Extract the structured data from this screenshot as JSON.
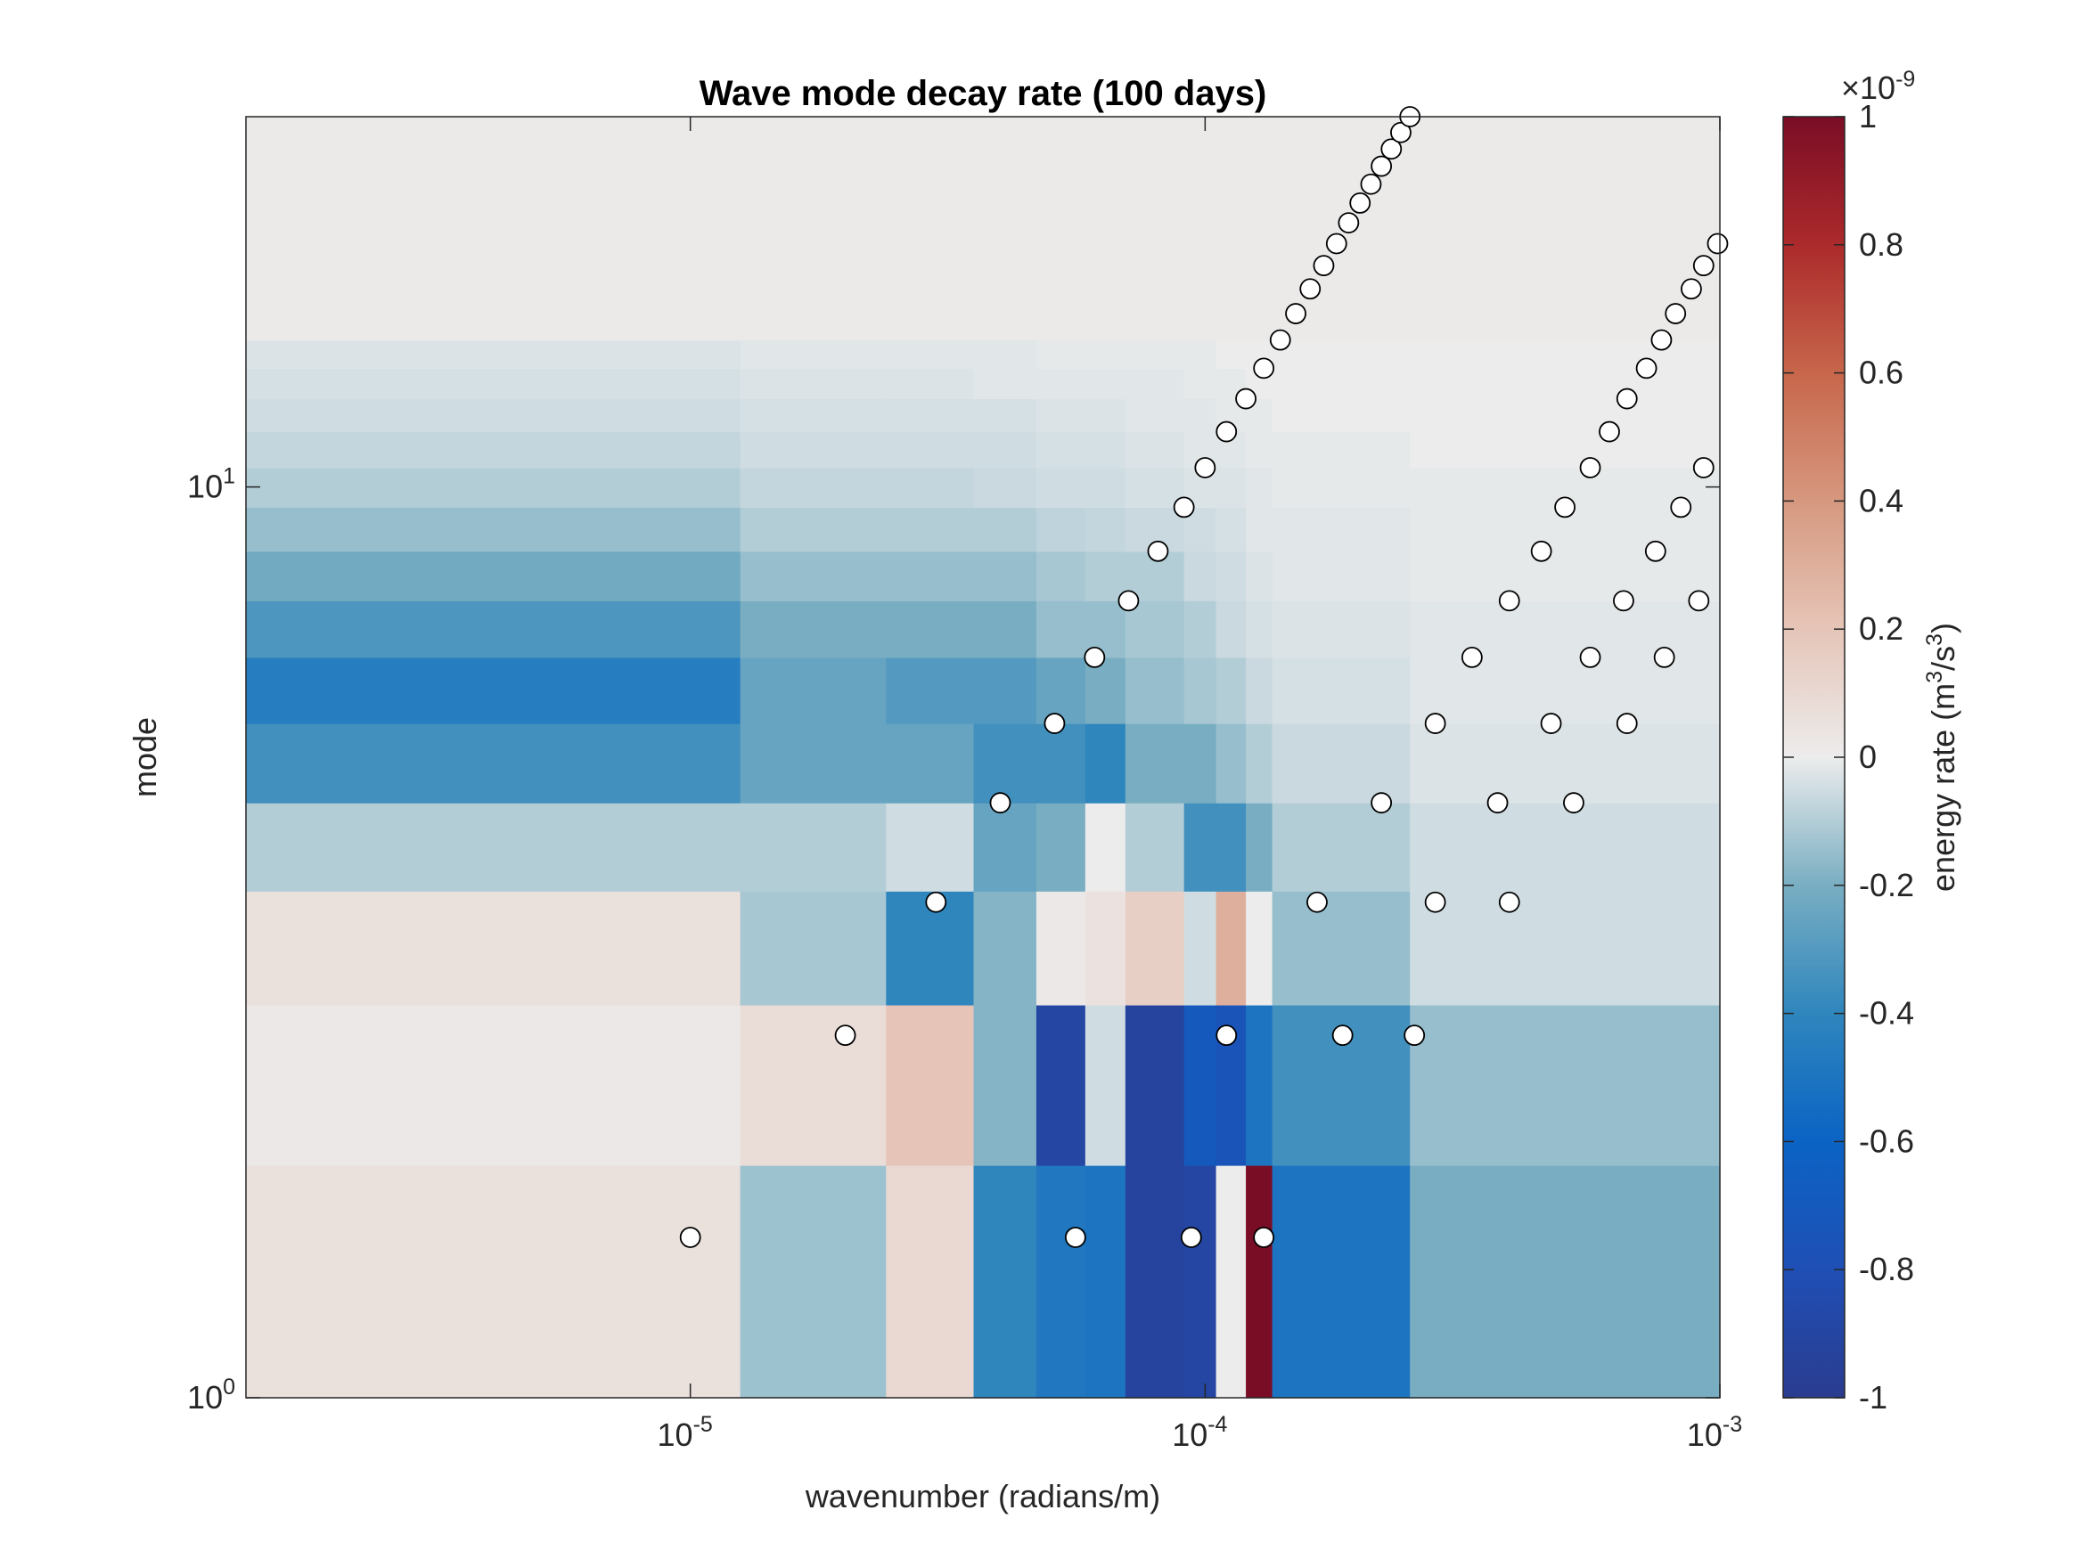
{
  "chart_data": {
    "type": "heatmap",
    "title": "Wave mode decay rate (100 days)",
    "xlabel": "wavenumber (radians/m)",
    "ylabel": "mode",
    "xscale": "log",
    "yscale": "log",
    "xlim": [
      1.37e-06,
      0.001
    ],
    "ylim": [
      1,
      25.5
    ],
    "x_ticks": [
      {
        "value": 1e-05,
        "base": "10",
        "exp": "-5"
      },
      {
        "value": 0.0001,
        "base": "10",
        "exp": "-4"
      },
      {
        "value": 0.001,
        "base": "10",
        "exp": "-3"
      }
    ],
    "y_ticks": [
      {
        "value": 1,
        "base": "10",
        "exp": "0"
      },
      {
        "value": 10,
        "base": "10",
        "exp": "1"
      }
    ],
    "colorbar": {
      "label": "energy rate (m³/s³)",
      "label_main": "energy rate (m",
      "label_sup1": "3",
      "label_mid": "/s",
      "label_sup2": "3",
      "label_end": ")",
      "multiplier_prefix": "×10",
      "multiplier_exp": "-9",
      "clim": [
        -1,
        1
      ],
      "ticks": [
        "1",
        "0.8",
        "0.6",
        "0.4",
        "0.2",
        "0",
        "-0.2",
        "-0.4",
        "-0.6",
        "-0.8",
        "-1"
      ],
      "colors": {
        "low": "#2a3c8f",
        "mid_low": "#0b63c4",
        "mid": "#ececec",
        "mid_high": "#d08a6e",
        "high": "#7a0d26"
      }
    },
    "mode_bands": [
      {
        "y0": 1,
        "y1": 1.8,
        "values": [
          0.06,
          -0.14,
          0.1,
          -0.4,
          -0.48,
          -0.5,
          -0.92,
          -0.9,
          0.0,
          1.0,
          -0.5,
          -0.2
        ]
      },
      {
        "y0": 1.8,
        "y1": 2.7,
        "values": [
          0.02,
          0.08,
          0.2,
          -0.18,
          -0.9,
          -0.05,
          -0.92,
          -0.7,
          -0.75,
          -0.5,
          -0.35,
          -0.15
        ]
      },
      {
        "y0": 2.7,
        "y1": 3.6,
        "values": [
          0.06,
          -0.12,
          -0.4,
          -0.18,
          0.02,
          0.05,
          0.15,
          -0.05,
          0.3,
          0.0,
          -0.15,
          -0.05
        ]
      },
      {
        "y0": 3.6,
        "y1": 4.5,
        "values": [
          -0.1,
          -0.1,
          -0.05,
          -0.25,
          -0.2,
          0.0,
          -0.1,
          -0.35,
          -0.35,
          -0.2,
          -0.1,
          -0.05
        ]
      },
      {
        "y0": 4.5,
        "y1": 5.5,
        "values": [
          -0.35,
          -0.25,
          -0.25,
          -0.35,
          -0.35,
          -0.4,
          -0.2,
          -0.2,
          -0.15,
          -0.1,
          -0.06,
          -0.03
        ]
      },
      {
        "y0": 5.5,
        "y1": 6.5,
        "values": [
          -0.45,
          -0.25,
          -0.3,
          -0.3,
          -0.25,
          -0.2,
          -0.15,
          -0.12,
          -0.1,
          -0.06,
          -0.04,
          -0.02
        ]
      },
      {
        "y0": 6.5,
        "y1": 7.5,
        "values": [
          -0.32,
          -0.2,
          -0.2,
          -0.2,
          -0.15,
          -0.15,
          -0.12,
          -0.1,
          -0.06,
          -0.04,
          -0.03,
          -0.02
        ]
      },
      {
        "y0": 7.5,
        "y1": 8.5,
        "values": [
          -0.22,
          -0.15,
          -0.15,
          -0.15,
          -0.12,
          -0.1,
          -0.1,
          -0.06,
          -0.05,
          -0.03,
          -0.02,
          -0.01
        ]
      },
      {
        "y0": 8.5,
        "y1": 9.5,
        "values": [
          -0.15,
          -0.1,
          -0.1,
          -0.1,
          -0.08,
          -0.07,
          -0.06,
          -0.05,
          -0.04,
          -0.02,
          -0.02,
          -0.01
        ]
      },
      {
        "y0": 9.5,
        "y1": 10.5,
        "values": [
          -0.1,
          -0.07,
          -0.07,
          -0.06,
          -0.05,
          -0.05,
          -0.04,
          -0.03,
          -0.03,
          -0.02,
          -0.01,
          -0.01
        ]
      },
      {
        "y0": 10.5,
        "y1": 11.5,
        "values": [
          -0.07,
          -0.05,
          -0.05,
          -0.05,
          -0.04,
          -0.04,
          -0.03,
          -0.02,
          -0.02,
          -0.01,
          -0.01,
          0.0
        ]
      },
      {
        "y0": 11.5,
        "y1": 12.5,
        "values": [
          -0.05,
          -0.04,
          -0.04,
          -0.04,
          -0.03,
          -0.03,
          -0.02,
          -0.02,
          -0.01,
          -0.01,
          0.0,
          0.0
        ]
      },
      {
        "y0": 12.5,
        "y1": 13.5,
        "values": [
          -0.04,
          -0.03,
          -0.03,
          -0.02,
          -0.02,
          -0.02,
          -0.02,
          -0.01,
          -0.01,
          0.0,
          0.0,
          0.0
        ]
      },
      {
        "y0": 13.5,
        "y1": 14.5,
        "values": [
          -0.03,
          -0.02,
          -0.02,
          -0.02,
          -0.01,
          -0.01,
          -0.01,
          -0.01,
          0.0,
          0.0,
          0.0,
          0.0
        ]
      },
      {
        "y0": 14.5,
        "y1": 25.5,
        "values": [
          0.01,
          0.01,
          0.01,
          0.01,
          0.01,
          0.01,
          0.01,
          0.01,
          0.01,
          0.01,
          0.01,
          0.01
        ]
      }
    ],
    "column_edges": [
      1.37e-06,
      1.25e-05,
      2.4e-05,
      3.55e-05,
      4.7e-05,
      5.85e-05,
      7e-05,
      9.1e-05,
      0.000105,
      0.00012,
      0.000135,
      0.00025,
      0.001
    ],
    "markers": [
      {
        "x": 1e-05,
        "y": 1.5
      },
      {
        "x": 5.6e-05,
        "y": 1.5
      },
      {
        "x": 9.4e-05,
        "y": 1.5
      },
      {
        "x": 0.00013,
        "y": 1.5
      },
      {
        "x": 2e-05,
        "y": 2.5
      },
      {
        "x": 0.00011,
        "y": 2.5
      },
      {
        "x": 0.000185,
        "y": 2.5
      },
      {
        "x": 0.000255,
        "y": 2.5
      },
      {
        "x": 3e-05,
        "y": 3.5
      },
      {
        "x": 0.000165,
        "y": 3.5
      },
      {
        "x": 0.00028,
        "y": 3.5
      },
      {
        "x": 0.00039,
        "y": 3.5
      },
      {
        "x": 4e-05,
        "y": 4.5
      },
      {
        "x": 0.00022,
        "y": 4.5
      },
      {
        "x": 0.00037,
        "y": 4.5
      },
      {
        "x": 0.00052,
        "y": 4.5
      },
      {
        "x": 5.1e-05,
        "y": 5.5
      },
      {
        "x": 0.00028,
        "y": 5.5
      },
      {
        "x": 0.00047,
        "y": 5.5
      },
      {
        "x": 0.00066,
        "y": 5.5
      },
      {
        "x": 6.1e-05,
        "y": 6.5
      },
      {
        "x": 0.00033,
        "y": 6.5
      },
      {
        "x": 0.00056,
        "y": 6.5
      },
      {
        "x": 0.00078,
        "y": 6.5
      },
      {
        "x": 7.1e-05,
        "y": 7.5
      },
      {
        "x": 0.00039,
        "y": 7.5
      },
      {
        "x": 0.00065,
        "y": 7.5
      },
      {
        "x": 0.00091,
        "y": 7.5
      },
      {
        "x": 8.1e-05,
        "y": 8.5
      },
      {
        "x": 0.00045,
        "y": 8.5
      },
      {
        "x": 0.00075,
        "y": 8.5
      },
      {
        "x": 9.1e-05,
        "y": 9.5
      },
      {
        "x": 0.0005,
        "y": 9.5
      },
      {
        "x": 0.00084,
        "y": 9.5
      },
      {
        "x": 0.0001,
        "y": 10.5
      },
      {
        "x": 0.00056,
        "y": 10.5
      },
      {
        "x": 0.00093,
        "y": 10.5
      },
      {
        "x": 0.00011,
        "y": 11.5
      },
      {
        "x": 0.00061,
        "y": 11.5
      },
      {
        "x": 0.00012,
        "y": 12.5
      },
      {
        "x": 0.00066,
        "y": 12.5
      },
      {
        "x": 0.00013,
        "y": 13.5
      },
      {
        "x": 0.00072,
        "y": 13.5
      },
      {
        "x": 0.00014,
        "y": 14.5
      },
      {
        "x": 0.00077,
        "y": 14.5
      },
      {
        "x": 0.00015,
        "y": 15.5
      },
      {
        "x": 0.00082,
        "y": 15.5
      },
      {
        "x": 0.00016,
        "y": 16.5
      },
      {
        "x": 0.00088,
        "y": 16.5
      },
      {
        "x": 0.00017,
        "y": 17.5
      },
      {
        "x": 0.00093,
        "y": 17.5
      },
      {
        "x": 0.00018,
        "y": 18.5
      },
      {
        "x": 0.00099,
        "y": 18.5
      },
      {
        "x": 0.00019,
        "y": 19.5
      },
      {
        "x": 0.0002,
        "y": 20.5
      },
      {
        "x": 0.00021,
        "y": 21.5
      },
      {
        "x": 0.00022,
        "y": 22.5
      },
      {
        "x": 0.00023,
        "y": 23.5
      },
      {
        "x": 0.00024,
        "y": 24.5
      },
      {
        "x": 0.00025,
        "y": 25.5
      }
    ]
  }
}
